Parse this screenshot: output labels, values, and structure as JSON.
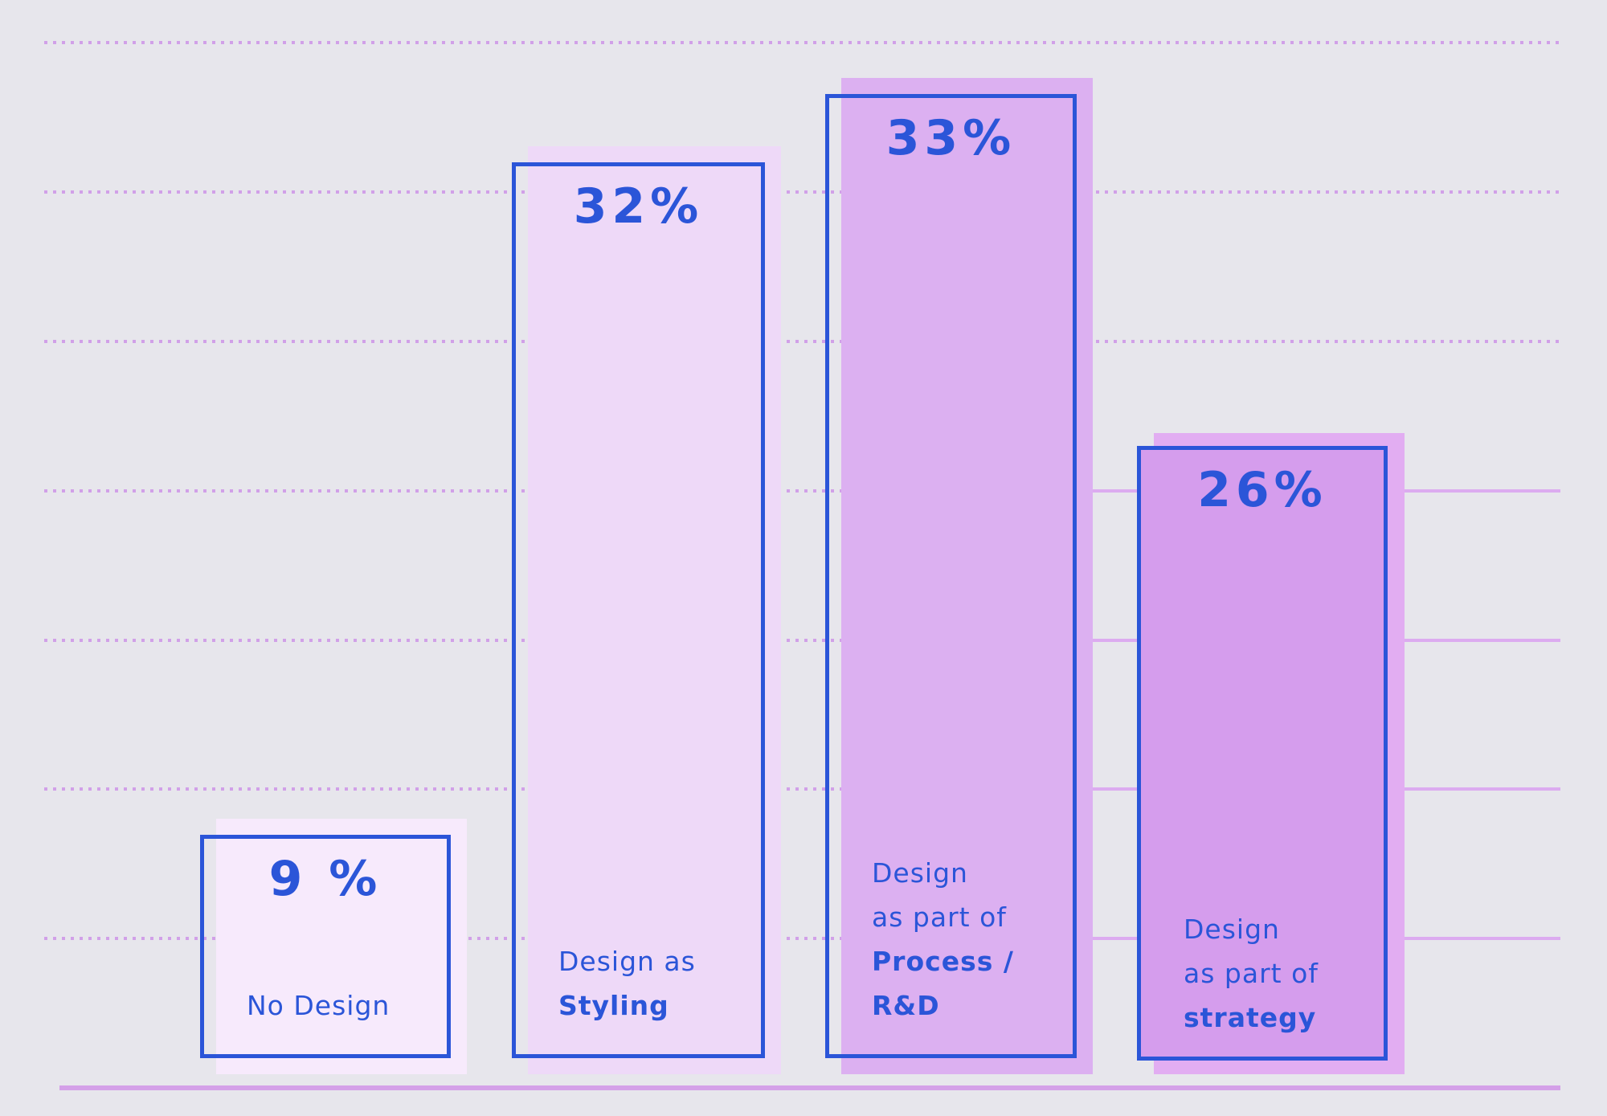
{
  "chart_data": {
    "type": "bar",
    "title": "",
    "categories": [
      "No Design",
      "Design as Styling",
      "Design as part of Process / R&D",
      "Design as part of strategy"
    ],
    "values": [
      9,
      32,
      33,
      26
    ],
    "unit": "%",
    "value_labels": [
      "9 %",
      "32%",
      "33%",
      "26%"
    ],
    "ylabel": "",
    "xlabel": "",
    "grid": "7 dotted horizontal gridlines, 4 solid lavender segments on right side, solid baseline",
    "legend": "none"
  },
  "colors": {
    "background": "#e7e6ec",
    "accent_blue": "#2b55d8",
    "dotted_grid": "#d1a0e8",
    "solid_grid": "#dcabf0",
    "baseline": "#d4a0e8"
  },
  "bars": [
    {
      "value": 9,
      "pct_label": "9 %",
      "fill": "#f7eafc",
      "shadow_fill": "#f7eafc",
      "filled_outline": false,
      "lines": [
        {
          "text": "No Design",
          "bold": false
        }
      ]
    },
    {
      "value": 32,
      "pct_label": "32%",
      "fill": "#eed9f8",
      "shadow_fill": "#eed9f8",
      "filled_outline": false,
      "lines": [
        {
          "text": "Design as",
          "bold": false
        },
        {
          "text": "Styling",
          "bold": true
        }
      ]
    },
    {
      "value": 33,
      "pct_label": "33%",
      "fill": "#dcb0f1",
      "shadow_fill": "#dcb0f1",
      "filled_outline": false,
      "lines": [
        {
          "text": "Design",
          "bold": false
        },
        {
          "text": "as part of",
          "bold": false
        },
        {
          "text": "Process  /",
          "bold": true
        },
        {
          "text": "R&D",
          "bold": true
        }
      ]
    },
    {
      "value": 26,
      "pct_label": "26%",
      "fill": "#d59ded",
      "shadow_fill": "#e2adf2",
      "filled_outline": true,
      "lines": [
        {
          "text": "Design",
          "bold": false
        },
        {
          "text": "as part of",
          "bold": false
        },
        {
          "text": "strategy",
          "bold": true
        }
      ]
    }
  ]
}
